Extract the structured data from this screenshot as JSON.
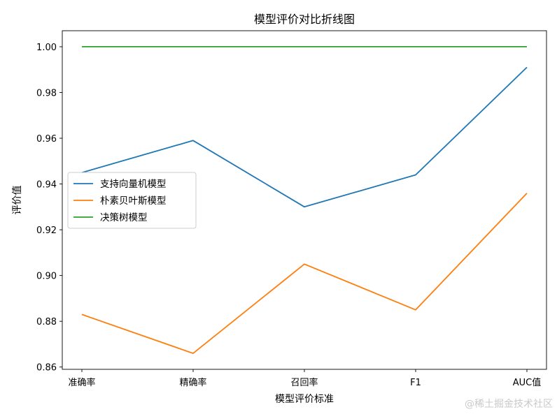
{
  "chart_data": {
    "type": "line",
    "title": "模型评价对比折线图",
    "xlabel": "模型评价标准",
    "ylabel": "评价值",
    "categories": [
      "准确率",
      "精确率",
      "召回率",
      "F1",
      "AUC值"
    ],
    "ylim": [
      0.859,
      1.007
    ],
    "yticks": [
      0.86,
      0.88,
      0.9,
      0.92,
      0.94,
      0.96,
      0.98,
      1.0
    ],
    "ytick_labels": [
      "0.86",
      "0.88",
      "0.90",
      "0.92",
      "0.94",
      "0.96",
      "0.98",
      "1.00"
    ],
    "grid": false,
    "legend_position": "center-left",
    "series": [
      {
        "name": "支持向量机模型",
        "color": "#1f77b4",
        "values": [
          0.945,
          0.959,
          0.93,
          0.944,
          0.991
        ]
      },
      {
        "name": "朴素贝叶斯模型",
        "color": "#ff7f0e",
        "values": [
          0.883,
          0.866,
          0.905,
          0.885,
          0.936
        ]
      },
      {
        "name": "决策树模型",
        "color": "#2ca02c",
        "values": [
          1.0,
          1.0,
          1.0,
          1.0,
          1.0
        ]
      }
    ]
  },
  "watermark": "@稀土掘金技术社区"
}
